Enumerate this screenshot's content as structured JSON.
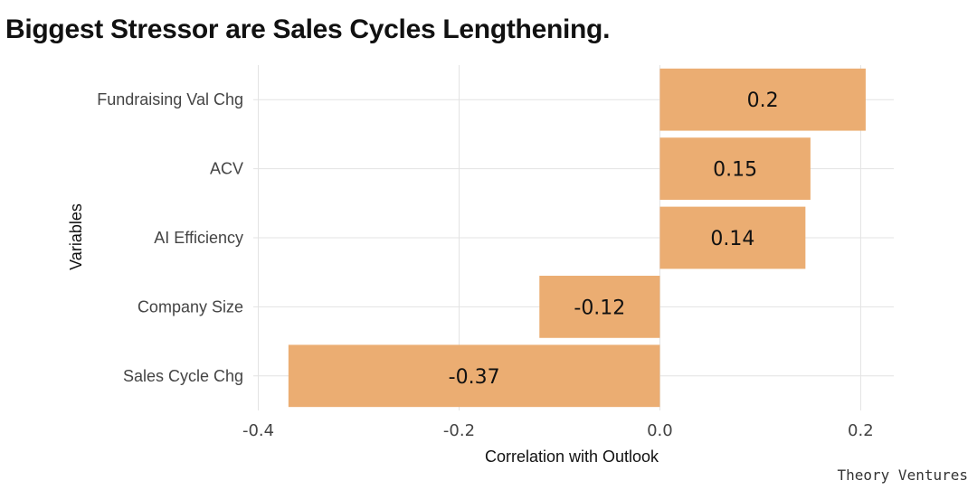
{
  "chart_data": {
    "type": "bar",
    "orientation": "horizontal",
    "title": "Biggest Stressor are Sales Cycles Lengthening.",
    "xlabel": "Correlation with Outlook",
    "ylabel": "Variables",
    "categories": [
      "Fundraising Val Chg",
      "ACV",
      "AI Efficiency",
      "Company Size",
      "Sales Cycle Chg"
    ],
    "values": [
      0.205,
      0.15,
      0.145,
      -0.12,
      -0.37
    ],
    "data_labels": [
      "0.2",
      "0.15",
      "0.14",
      "-0.12",
      "-0.37"
    ],
    "xlim": [
      -0.405,
      0.233
    ],
    "xticks": [
      -0.4,
      -0.2,
      0.0,
      0.2
    ],
    "xtick_labels": [
      "-0.4",
      "-0.2",
      "0.0",
      "0.2"
    ],
    "grid": true,
    "bar_color": "#EBAD72"
  },
  "credit": "Theory Ventures"
}
